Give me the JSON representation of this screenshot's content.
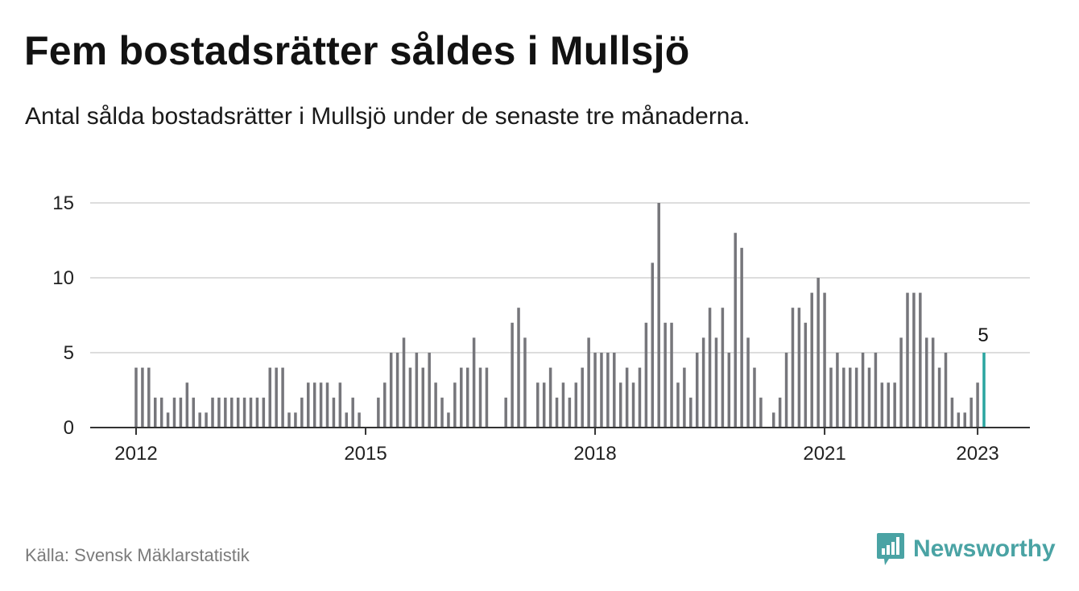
{
  "header": {
    "title": "Fem bostadsrätter såldes i Mullsjö",
    "subtitle": "Antal sålda bostadsrätter i Mullsjö under de senaste tre månaderna."
  },
  "footer": {
    "source": "Källa: Svensk Mäklarstatistik",
    "brand": "Newsworthy",
    "brand_icon": "newsworthy-logo-icon"
  },
  "colors": {
    "bar": "#76767b",
    "highlight": "#2aa5a0",
    "grid": "#dddddd",
    "axis": "#333333",
    "brand": "#4aa3a4"
  },
  "chart_data": {
    "type": "bar",
    "x_start": "2012-01",
    "x_step": "month",
    "x_ticks": [
      "2012",
      "2015",
      "2018",
      "2021",
      "2023"
    ],
    "y_ticks": [
      "0",
      "5",
      "10",
      "15"
    ],
    "ylim": [
      0,
      15
    ],
    "grid": true,
    "highlight_label": "5",
    "values": [
      4,
      4,
      4,
      2,
      2,
      1,
      2,
      2,
      3,
      2,
      1,
      1,
      2,
      2,
      2,
      2,
      2,
      2,
      2,
      2,
      2,
      4,
      4,
      4,
      1,
      1,
      2,
      3,
      3,
      3,
      3,
      2,
      3,
      1,
      2,
      1,
      0,
      0,
      2,
      3,
      5,
      5,
      6,
      4,
      5,
      4,
      5,
      3,
      2,
      1,
      3,
      4,
      4,
      6,
      4,
      4,
      0,
      0,
      2,
      7,
      8,
      6,
      0,
      3,
      3,
      4,
      2,
      3,
      2,
      3,
      4,
      6,
      5,
      5,
      5,
      5,
      3,
      4,
      3,
      4,
      7,
      11,
      15,
      7,
      7,
      3,
      4,
      2,
      5,
      6,
      8,
      6,
      8,
      5,
      13,
      12,
      6,
      4,
      2,
      0,
      1,
      2,
      5,
      8,
      8,
      7,
      9,
      10,
      9,
      4,
      5,
      4,
      4,
      4,
      5,
      4,
      5,
      3,
      3,
      3,
      6,
      9,
      9,
      9,
      6,
      6,
      4,
      5,
      2,
      1,
      1,
      2,
      3,
      5
    ]
  }
}
